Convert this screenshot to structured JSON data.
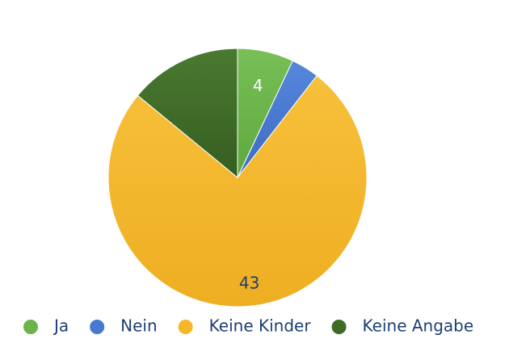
{
  "chart_data": {
    "type": "pie",
    "title": "",
    "slices": [
      {
        "label": "Ja",
        "value": 4,
        "color": "#6ab44b",
        "show_label": "4"
      },
      {
        "label": "Nein",
        "value": 2,
        "color": "#4679d1",
        "show_label": ""
      },
      {
        "label": "Keine Kinder",
        "value": 43,
        "color": "#f4b72b",
        "show_label": "43"
      },
      {
        "label": "Keine Angabe",
        "value": 8,
        "color": "#3f6a27",
        "show_label": ""
      }
    ],
    "legend": {
      "position": "bottom",
      "items": [
        "Ja",
        "Nein",
        "Keine Kinder",
        "Keine Angabe"
      ]
    },
    "label_colors": {
      "Ja": "#ffffff",
      "Keine Kinder": "#1c3f73"
    }
  }
}
